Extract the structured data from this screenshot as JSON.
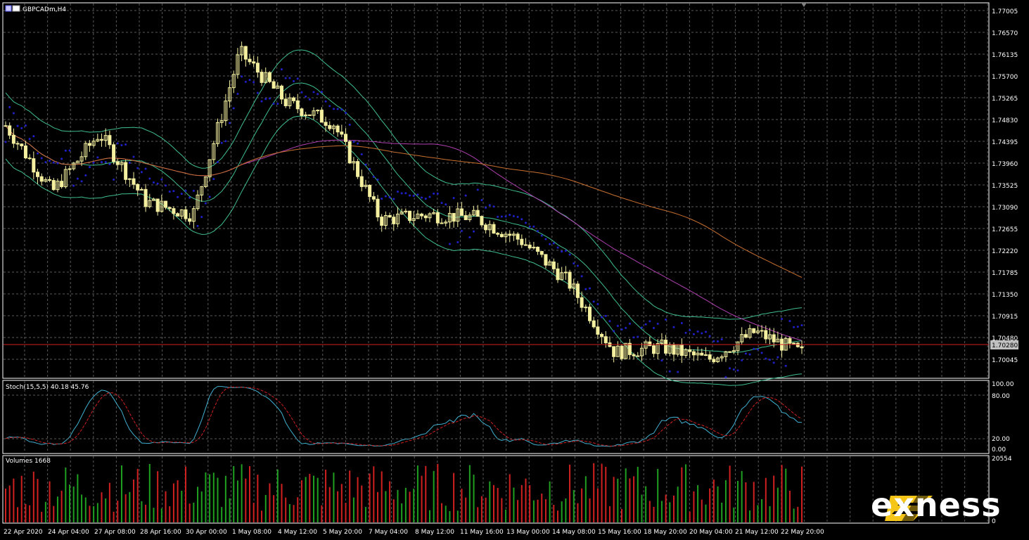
{
  "window": {
    "symbol_label": "GBPCADm,H4"
  },
  "colors": {
    "background": "#000000",
    "grid": "#5a5a5a",
    "candle": "#f5f0a0",
    "bollinger": "#3fbf8f",
    "ma_slow": "#c87030",
    "ma_mid": "#b040b0",
    "parabolic_sar": "#2020c8",
    "price_line": "#d02020",
    "stoch_main": "#40b0d0",
    "stoch_signal": "#d02020",
    "volume_up": "#20a020",
    "volume_down": "#d02020",
    "logo_accent": "#f5c518"
  },
  "main_panel": {
    "price_ticks": [
      "1.77005",
      "1.76570",
      "1.76135",
      "1.75700",
      "1.75265",
      "1.74830",
      "1.74395",
      "1.73960",
      "1.73525",
      "1.73090",
      "1.72655",
      "1.72220",
      "1.71785",
      "1.71350",
      "1.70915",
      "1.70480",
      "1.70045"
    ],
    "current_price": "1.70280"
  },
  "stoch_panel": {
    "label": "Stoch(15,5,5) 40.18 45.76",
    "ticks": [
      "100.00",
      "80.00",
      "20.00",
      "0.00"
    ]
  },
  "volume_panel": {
    "label": "Volumes 1668",
    "ticks": [
      "20554",
      "0"
    ]
  },
  "time_axis": {
    "labels": [
      "22 Apr 2020",
      "24 Apr 04:00",
      "27 Apr 08:00",
      "28 Apr 16:00",
      "30 Apr 00:00",
      "1 May 08:00",
      "4 May 12:00",
      "5 May 20:00",
      "7 May 04:00",
      "8 May 12:00",
      "11 May 16:00",
      "13 May 00:00",
      "14 May 08:00",
      "15 May 16:00",
      "18 May 20:00",
      "20 May 04:00",
      "21 May 12:00",
      "22 May 20:00"
    ]
  },
  "logo": {
    "brand": "exness"
  },
  "chart_data": {
    "type": "line",
    "title": "GBPCADm,H4",
    "x": [
      "22 Apr 2020",
      "24 Apr 04:00",
      "27 Apr 08:00",
      "28 Apr 16:00",
      "30 Apr 00:00",
      "1 May 08:00",
      "4 May 12:00",
      "5 May 20:00",
      "7 May 04:00",
      "8 May 12:00",
      "11 May 16:00",
      "13 May 00:00",
      "14 May 08:00",
      "15 May 16:00",
      "18 May 20:00",
      "20 May 04:00",
      "21 May 12:00",
      "22 May 20:00"
    ],
    "series": [
      {
        "values": [
          1.7475,
          1.7345,
          1.746,
          1.7325,
          1.73,
          1.762,
          1.752,
          1.748,
          1.729,
          1.73,
          1.7295,
          1.725,
          1.717,
          1.703,
          1.704,
          1.7015,
          1.707,
          1.7028
        ]
      }
    ],
    "ylim": [
      1.698,
      1.7715
    ],
    "grid": true,
    "current_price": 1.7028
  }
}
